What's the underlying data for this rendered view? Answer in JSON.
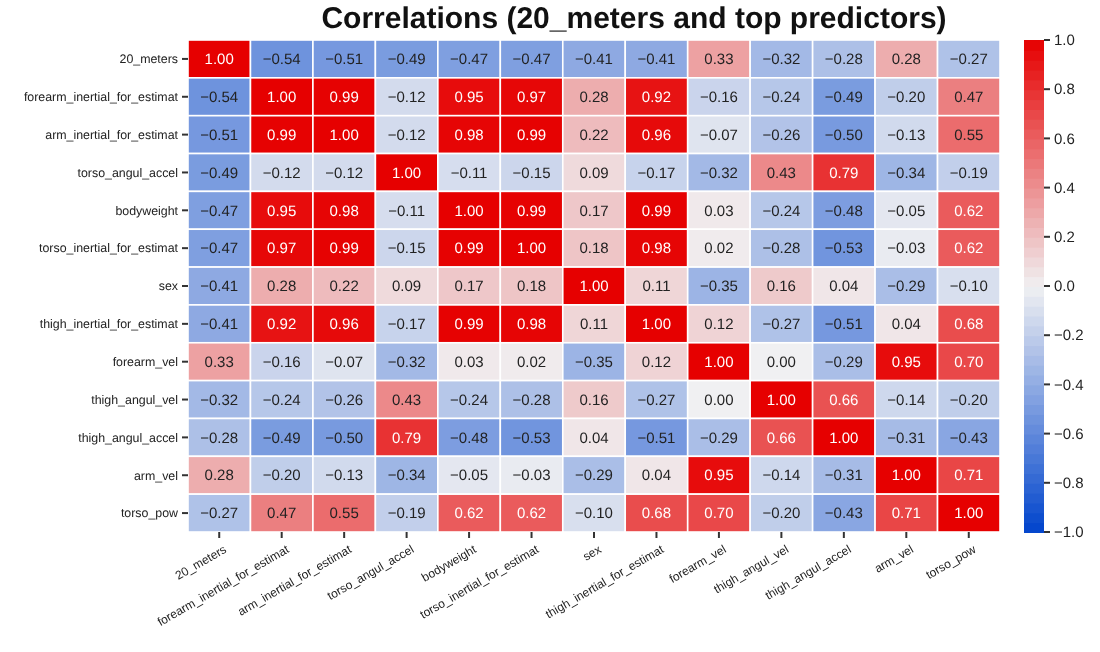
{
  "chart_data": {
    "type": "heatmap",
    "title": "Correlations (20_meters and top predictors)",
    "categories": [
      "20_meters",
      "forearm_inertial_for_estimat",
      "arm_inertial_for_estimat",
      "torso_angul_accel",
      "bodyweight",
      "torso_inertial_for_estimat",
      "sex",
      "thigh_inertial_for_estimat",
      "forearm_vel",
      "thigh_angul_vel",
      "thigh_angul_accel",
      "arm_vel",
      "torso_pow"
    ],
    "y_categories": [
      "20_meters",
      "forearm_inertial_for_estimat",
      "arm_inertial_for_estimat",
      "torso_angul_accel",
      "bodyweight",
      "torso_inertial_for_estimat",
      "sex",
      "thigh_inertial_for_estimat",
      "forearm_vel",
      "thigh_angul_vel",
      "thigh_angul_accel",
      "arm_vel",
      "torso_pow"
    ],
    "cells": [
      [
        1.0,
        -0.54,
        -0.51,
        -0.49,
        -0.47,
        -0.47,
        -0.41,
        -0.41,
        0.33,
        -0.32,
        -0.28,
        0.28,
        -0.27
      ],
      [
        -0.54,
        1.0,
        0.99,
        -0.12,
        0.95,
        0.97,
        0.28,
        0.92,
        -0.16,
        -0.24,
        -0.49,
        -0.2,
        0.47
      ],
      [
        -0.51,
        0.99,
        1.0,
        -0.12,
        0.98,
        0.99,
        0.22,
        0.96,
        -0.07,
        -0.26,
        -0.5,
        -0.13,
        0.55
      ],
      [
        -0.49,
        -0.12,
        -0.12,
        1.0,
        -0.11,
        -0.15,
        0.09,
        -0.17,
        -0.32,
        0.43,
        0.79,
        -0.34,
        -0.19
      ],
      [
        -0.47,
        0.95,
        0.98,
        -0.11,
        1.0,
        0.99,
        0.17,
        0.99,
        0.03,
        -0.24,
        -0.48,
        -0.05,
        0.62
      ],
      [
        -0.47,
        0.97,
        0.99,
        -0.15,
        0.99,
        1.0,
        0.18,
        0.98,
        0.02,
        -0.28,
        -0.53,
        -0.03,
        0.62
      ],
      [
        -0.41,
        0.28,
        0.22,
        0.09,
        0.17,
        0.18,
        1.0,
        0.11,
        -0.35,
        0.16,
        0.04,
        -0.29,
        -0.1
      ],
      [
        -0.41,
        0.92,
        0.96,
        -0.17,
        0.99,
        0.98,
        0.11,
        1.0,
        0.12,
        -0.27,
        -0.51,
        0.04,
        0.68
      ],
      [
        0.33,
        -0.16,
        -0.07,
        -0.32,
        0.03,
        0.02,
        -0.35,
        0.12,
        1.0,
        0.0,
        -0.29,
        0.95,
        0.7
      ],
      [
        -0.32,
        -0.24,
        -0.26,
        0.43,
        -0.24,
        -0.28,
        0.16,
        -0.27,
        0.0,
        1.0,
        0.66,
        -0.14,
        -0.2
      ],
      [
        -0.28,
        -0.49,
        -0.5,
        0.79,
        -0.48,
        -0.53,
        0.04,
        -0.51,
        -0.29,
        0.66,
        1.0,
        -0.31,
        -0.43
      ],
      [
        0.28,
        -0.2,
        -0.13,
        -0.34,
        -0.05,
        -0.03,
        -0.29,
        0.04,
        0.95,
        -0.14,
        -0.31,
        1.0,
        0.71
      ],
      [
        -0.27,
        0.47,
        0.55,
        -0.19,
        0.62,
        0.62,
        -0.1,
        0.68,
        0.7,
        -0.2,
        -0.43,
        0.71,
        1.0
      ]
    ],
    "cell_labels": [
      [
        "1.00",
        "−0.54",
        "−0.51",
        "−0.49",
        "−0.47",
        "−0.47",
        "−0.41",
        "−0.41",
        "0.33",
        "−0.32",
        "−0.28",
        "0.28",
        "−0.27"
      ],
      [
        "−0.54",
        "1.00",
        "0.99",
        "−0.12",
        "0.95",
        "0.97",
        "0.28",
        "0.92",
        "−0.16",
        "−0.24",
        "−0.49",
        "−0.20",
        "0.47"
      ],
      [
        "−0.51",
        "0.99",
        "1.00",
        "−0.12",
        "0.98",
        "0.99",
        "0.22",
        "0.96",
        "−0.07",
        "−0.26",
        "−0.50",
        "−0.13",
        "0.55"
      ],
      [
        "−0.49",
        "−0.12",
        "−0.12",
        "1.00",
        "−0.11",
        "−0.15",
        "0.09",
        "−0.17",
        "−0.32",
        "0.43",
        "0.79",
        "−0.34",
        "−0.19"
      ],
      [
        "−0.47",
        "0.95",
        "0.98",
        "−0.11",
        "1.00",
        "0.99",
        "0.17",
        "0.99",
        "0.03",
        "−0.24",
        "−0.48",
        "−0.05",
        "0.62"
      ],
      [
        "−0.47",
        "0.97",
        "0.99",
        "−0.15",
        "0.99",
        "1.00",
        "0.18",
        "0.98",
        "0.02",
        "−0.28",
        "−0.53",
        "−0.03",
        "0.62"
      ],
      [
        "−0.41",
        "0.28",
        "0.22",
        "0.09",
        "0.17",
        "0.18",
        "1.00",
        "0.11",
        "−0.35",
        "0.16",
        "0.04",
        "−0.29",
        "−0.10"
      ],
      [
        "−0.41",
        "0.92",
        "0.96",
        "−0.17",
        "0.99",
        "0.98",
        "0.11",
        "1.00",
        "0.12",
        "−0.27",
        "−0.51",
        "0.04",
        "0.68"
      ],
      [
        "0.33",
        "−0.16",
        "−0.07",
        "−0.32",
        "0.03",
        "0.02",
        "−0.35",
        "0.12",
        "1.00",
        "0.00",
        "−0.29",
        "0.95",
        "0.70"
      ],
      [
        "−0.32",
        "−0.24",
        "−0.26",
        "0.43",
        "−0.24",
        "−0.28",
        "0.16",
        "−0.27",
        "0.00",
        "1.00",
        "0.66",
        "−0.14",
        "−0.20"
      ],
      [
        "−0.28",
        "−0.49",
        "−0.50",
        "0.79",
        "−0.48",
        "−0.53",
        "0.04",
        "−0.51",
        "−0.29",
        "0.66",
        "1.00",
        "−0.31",
        "−0.43"
      ],
      [
        "0.28",
        "−0.20",
        "−0.13",
        "−0.34",
        "−0.05",
        "−0.03",
        "−0.29",
        "0.04",
        "0.95",
        "−0.14",
        "−0.31",
        "1.00",
        "0.71"
      ],
      [
        "−0.27",
        "0.47",
        "0.55",
        "−0.19",
        "0.62",
        "0.62",
        "−0.10",
        "0.68",
        "0.70",
        "−0.20",
        "−0.43",
        "0.71",
        "1.00"
      ]
    ],
    "clim": [
      -1,
      1
    ],
    "cticks": [
      {
        "value": -1,
        "label": "−1.0"
      },
      {
        "value": -0.8,
        "label": "−0.8"
      },
      {
        "value": -0.6,
        "label": "−0.6"
      },
      {
        "value": -0.4,
        "label": "−0.4"
      },
      {
        "value": -0.2,
        "label": "−0.2"
      },
      {
        "value": 0,
        "label": "0.0"
      },
      {
        "value": 0.2,
        "label": "0.2"
      },
      {
        "value": 0.4,
        "label": "0.4"
      },
      {
        "value": 0.6,
        "label": "0.6"
      },
      {
        "value": 0.8,
        "label": "0.8"
      },
      {
        "value": 1,
        "label": "1.0"
      }
    ]
  }
}
